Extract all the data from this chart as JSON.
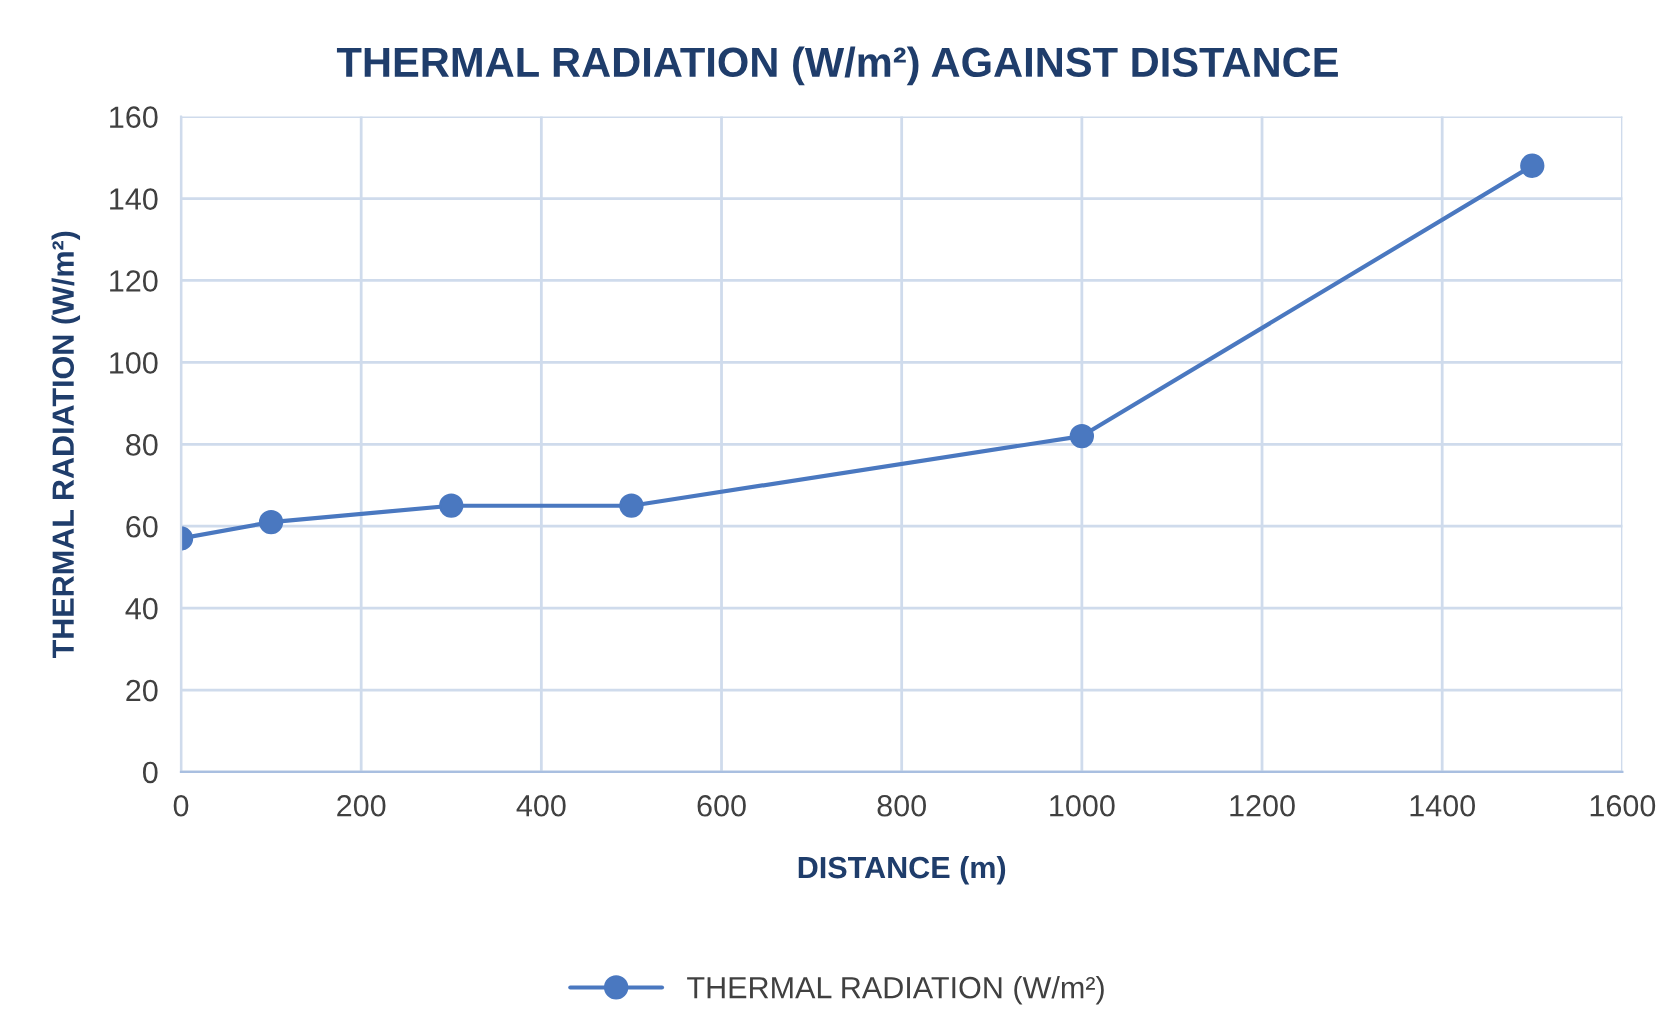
{
  "chart_data": {
    "type": "line",
    "title": "THERMAL RADIATION (W/m²) AGAINST DISTANCE",
    "xlabel": "DISTANCE (m)",
    "ylabel": "THERMAL RADIATION (W/m²)",
    "x": [
      0,
      100,
      300,
      500,
      1000,
      1500
    ],
    "series": [
      {
        "name": "THERMAL RADIATION (W/m²)",
        "color": "#4a78c0",
        "values": [
          57,
          61,
          65,
          65,
          82,
          148
        ]
      }
    ],
    "xlim": [
      0,
      1600
    ],
    "xticks": [
      0,
      200,
      400,
      600,
      800,
      1000,
      1200,
      1400,
      1600
    ],
    "ylim": [
      0,
      160
    ],
    "yticks": [
      0,
      20,
      40,
      60,
      80,
      100,
      120,
      140,
      160
    ],
    "grid": true,
    "legend": "bottom",
    "marker": "circle",
    "line_style": "solid"
  }
}
